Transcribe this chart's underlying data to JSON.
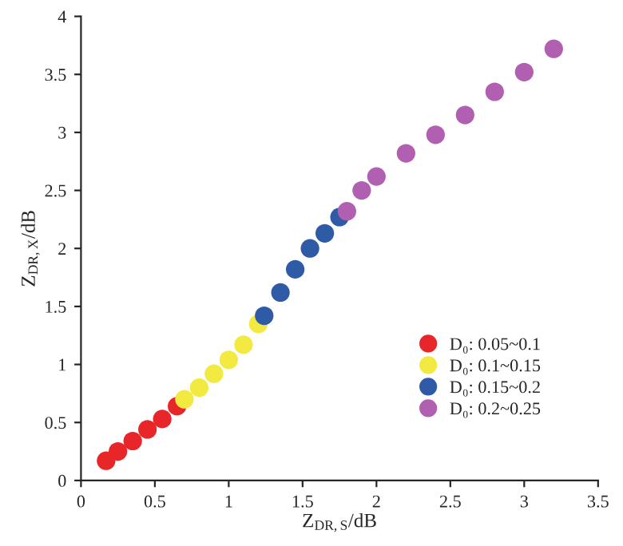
{
  "chart_data": {
    "type": "scatter",
    "xlabel": "Z$_{DR,S}$/dB",
    "ylabel": "Z$_{DR,X}$/dB",
    "xlim": [
      0,
      3.5
    ],
    "xticks": [
      0,
      0.5,
      1,
      1.5,
      2,
      2.5,
      3,
      3.5
    ],
    "ylim": [
      0,
      4
    ],
    "yticks": [
      0,
      0.5,
      1,
      1.5,
      2,
      2.5,
      3,
      3.5,
      4
    ],
    "grid": false,
    "legend": "bottom right",
    "marker": "circle",
    "series": [
      {
        "name": "D₀: 0.05~0.1",
        "color": "#e8262a",
        "x": [
          0.17,
          0.25,
          0.35,
          0.45,
          0.55,
          0.65
        ],
        "values": [
          0.17,
          0.25,
          0.34,
          0.44,
          0.53,
          0.64
        ]
      },
      {
        "name": "D₀: 0.1~0.15",
        "color": "#f2e941",
        "x": [
          0.7,
          0.8,
          0.9,
          1.0,
          1.1,
          1.2
        ],
        "values": [
          0.7,
          0.8,
          0.92,
          1.04,
          1.17,
          1.35
        ]
      },
      {
        "name": "D₀: 0.15~0.2",
        "color": "#2f5aa6",
        "x": [
          1.24,
          1.35,
          1.45,
          1.55,
          1.65,
          1.75
        ],
        "values": [
          1.42,
          1.62,
          1.82,
          2.0,
          2.13,
          2.27
        ]
      },
      {
        "name": "D₀: 0.2~0.25",
        "color": "#b15fb0",
        "x": [
          1.8,
          1.9,
          2.0,
          2.2,
          2.4,
          2.6,
          2.8,
          3.0,
          3.2
        ],
        "values": [
          2.32,
          2.5,
          2.62,
          2.82,
          2.98,
          3.15,
          3.35,
          3.52,
          3.72
        ]
      }
    ]
  }
}
